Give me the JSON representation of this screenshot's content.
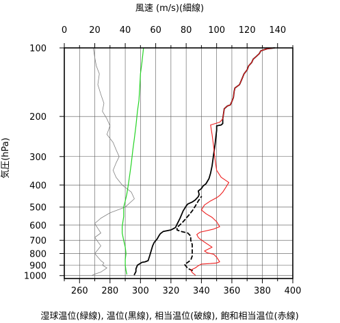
{
  "chart_data": {
    "type": "line",
    "title": "風速 (m/s)(細線)",
    "xlabel": "湿球温位(緑線), 温位(黒線), 相当温位(破線), 飽和相当温位(赤線)",
    "ylabel": "気圧(hPa)",
    "x_bottom": {
      "min": 250,
      "max": 400,
      "ticks": [
        260,
        280,
        300,
        320,
        340,
        360,
        380,
        400
      ],
      "tick_labels": [
        "260",
        "280",
        "300",
        "320",
        "340",
        "360",
        "380",
        "400"
      ]
    },
    "x_top": {
      "min": 0,
      "max": 150,
      "ticks": [
        0,
        20,
        40,
        60,
        80,
        100,
        120,
        140
      ],
      "tick_labels": [
        "0",
        "20",
        "40",
        "60",
        "80",
        "100",
        "120",
        "140"
      ]
    },
    "y": {
      "scale": "log",
      "range": [
        1030,
        100
      ],
      "ticks": [
        100,
        200,
        300,
        400,
        500,
        600,
        700,
        800,
        900,
        1000
      ],
      "tick_labels": [
        "100",
        "200",
        "300",
        "400",
        "500",
        "600",
        "700",
        "800",
        "900",
        "1000"
      ]
    },
    "grid": true,
    "series": [
      {
        "name": "風速",
        "axis": "top",
        "color": "#808080",
        "dash": "",
        "width": 0.8,
        "points": [
          [
            18,
            1000
          ],
          [
            20,
            985
          ],
          [
            24,
            965
          ],
          [
            26,
            945
          ],
          [
            28,
            925
          ],
          [
            25,
            900
          ],
          [
            26,
            880
          ],
          [
            24,
            860
          ],
          [
            22,
            830
          ],
          [
            20,
            800
          ],
          [
            22,
            770
          ],
          [
            24,
            740
          ],
          [
            22,
            710
          ],
          [
            20,
            680
          ],
          [
            24,
            650
          ],
          [
            22,
            620
          ],
          [
            20,
            590
          ],
          [
            24,
            560
          ],
          [
            30,
            530
          ],
          [
            40,
            500
          ],
          [
            46,
            460
          ],
          [
            44,
            430
          ],
          [
            38,
            400
          ],
          [
            34,
            370
          ],
          [
            32,
            345
          ],
          [
            34,
            320
          ],
          [
            36,
            300
          ],
          [
            34,
            280
          ],
          [
            32,
            260
          ],
          [
            28,
            240
          ],
          [
            30,
            220
          ],
          [
            28,
            205
          ],
          [
            25,
            190
          ],
          [
            26,
            175
          ],
          [
            24,
            160
          ],
          [
            22,
            145
          ],
          [
            23,
            130
          ],
          [
            21,
            120
          ],
          [
            20,
            110
          ],
          [
            19,
            100
          ]
        ]
      },
      {
        "name": "湿球温位",
        "axis": "bottom",
        "color": "#22d322",
        "dash": "",
        "width": 1.2,
        "points": [
          [
            291,
            985
          ],
          [
            290.5,
            950
          ],
          [
            290,
            900
          ],
          [
            290,
            850
          ],
          [
            290.5,
            800
          ],
          [
            290,
            750
          ],
          [
            289,
            700
          ],
          [
            288,
            650
          ],
          [
            288,
            610
          ],
          [
            288.5,
            580
          ],
          [
            289,
            550
          ],
          [
            289,
            500
          ],
          [
            290,
            470
          ],
          [
            291,
            440
          ],
          [
            292,
            400
          ],
          [
            293,
            360
          ],
          [
            294,
            320
          ],
          [
            295,
            280
          ],
          [
            296,
            250
          ],
          [
            297,
            220
          ],
          [
            298,
            190
          ],
          [
            299,
            170
          ],
          [
            299.5,
            150
          ],
          [
            300,
            130
          ],
          [
            301,
            115
          ],
          [
            302,
            100
          ]
        ]
      },
      {
        "name": "温位",
        "axis": "bottom",
        "color": "#000000",
        "dash": "",
        "width": 1.8,
        "points": [
          [
            296,
            990
          ],
          [
            297,
            960
          ],
          [
            297,
            935
          ],
          [
            298,
            900
          ],
          [
            301,
            875
          ],
          [
            303,
            870
          ],
          [
            305,
            860
          ],
          [
            306,
            820
          ],
          [
            307,
            780
          ],
          [
            308,
            740
          ],
          [
            309,
            715
          ],
          [
            311,
            690
          ],
          [
            312,
            670
          ],
          [
            313,
            655
          ],
          [
            315,
            640
          ],
          [
            320,
            630
          ],
          [
            323,
            615
          ],
          [
            324,
            595
          ],
          [
            326,
            560
          ],
          [
            328,
            520
          ],
          [
            330,
            495
          ],
          [
            331,
            485
          ],
          [
            334,
            475
          ],
          [
            336,
            465
          ],
          [
            338,
            450
          ],
          [
            338.5,
            440
          ],
          [
            338,
            425
          ],
          [
            340,
            415
          ],
          [
            341,
            405
          ],
          [
            343,
            395
          ],
          [
            345,
            375
          ],
          [
            346,
            355
          ],
          [
            347,
            330
          ],
          [
            348,
            295
          ],
          [
            349,
            265
          ],
          [
            349.5,
            245
          ],
          [
            350,
            230
          ],
          [
            350,
            220
          ],
          [
            353,
            218
          ],
          [
            354,
            215
          ],
          [
            354,
            205
          ],
          [
            354.5,
            195
          ],
          [
            355,
            185
          ],
          [
            357,
            180
          ],
          [
            359,
            178
          ],
          [
            360,
            172
          ],
          [
            361,
            165
          ],
          [
            361.5,
            155
          ],
          [
            362,
            150
          ],
          [
            365,
            145
          ],
          [
            366,
            140
          ],
          [
            367,
            135
          ],
          [
            368,
            130
          ],
          [
            370,
            125
          ],
          [
            371,
            120
          ],
          [
            373,
            116
          ],
          [
            374,
            112
          ],
          [
            376,
            109
          ],
          [
            378,
            106
          ],
          [
            379,
            103
          ],
          [
            383,
            101
          ],
          [
            388,
            100
          ]
        ]
      },
      {
        "name": "相当温位",
        "axis": "bottom",
        "color": "#000000",
        "dash": "5,4",
        "width": 1.8,
        "points": [
          [
            334,
            950
          ],
          [
            331,
            930
          ],
          [
            330,
            910
          ],
          [
            329,
            895
          ],
          [
            331,
            875
          ],
          [
            333,
            855
          ],
          [
            334,
            820
          ],
          [
            334,
            790
          ],
          [
            334,
            760
          ],
          [
            334,
            730
          ],
          [
            333,
            700
          ],
          [
            333,
            670
          ],
          [
            331,
            650
          ],
          [
            326,
            638
          ],
          [
            324,
            630
          ],
          [
            324,
            615
          ],
          [
            328,
            580
          ],
          [
            332,
            540
          ],
          [
            334,
            520
          ],
          [
            336,
            495
          ],
          [
            338,
            470
          ],
          [
            340,
            450
          ]
        ]
      },
      {
        "name": "飽和相当温位",
        "axis": "bottom",
        "color": "#ee1c1c",
        "dash": "",
        "width": 1.1,
        "points": [
          [
            336,
            995
          ],
          [
            334,
            970
          ],
          [
            333,
            945
          ],
          [
            336,
            925
          ],
          [
            338,
            905
          ],
          [
            340,
            890
          ],
          [
            346,
            885
          ],
          [
            350,
            880
          ],
          [
            352,
            870
          ],
          [
            350,
            830
          ],
          [
            348,
            805
          ],
          [
            344,
            795
          ],
          [
            342,
            780
          ],
          [
            347,
            750
          ],
          [
            343,
            720
          ],
          [
            341,
            705
          ],
          [
            339,
            690
          ],
          [
            338,
            680
          ],
          [
            337,
            660
          ],
          [
            339,
            645
          ],
          [
            348,
            625
          ],
          [
            352,
            610
          ],
          [
            350,
            580
          ],
          [
            347,
            555
          ],
          [
            343,
            535
          ],
          [
            340,
            515
          ],
          [
            342,
            490
          ],
          [
            346,
            470
          ],
          [
            350,
            455
          ],
          [
            352,
            445
          ],
          [
            354,
            430
          ],
          [
            356,
            410
          ],
          [
            358,
            390
          ],
          [
            353,
            370
          ],
          [
            350,
            345
          ],
          [
            349,
            310
          ],
          [
            348,
            270
          ],
          [
            347,
            240
          ],
          [
            346,
            218
          ],
          [
            349,
            215
          ],
          [
            352,
            212
          ],
          [
            354,
            205
          ],
          [
            354.5,
            195
          ],
          [
            355,
            185
          ],
          [
            357,
            180
          ],
          [
            359,
            178
          ],
          [
            360,
            172
          ],
          [
            361,
            165
          ],
          [
            361.5,
            155
          ],
          [
            362,
            150
          ],
          [
            365,
            145
          ],
          [
            366,
            140
          ],
          [
            367,
            135
          ],
          [
            368,
            130
          ],
          [
            370,
            125
          ],
          [
            371,
            120
          ],
          [
            373,
            116
          ],
          [
            374,
            112
          ],
          [
            376,
            109
          ],
          [
            378,
            106
          ],
          [
            379,
            103
          ],
          [
            383,
            101
          ],
          [
            388,
            100
          ]
        ]
      }
    ]
  }
}
